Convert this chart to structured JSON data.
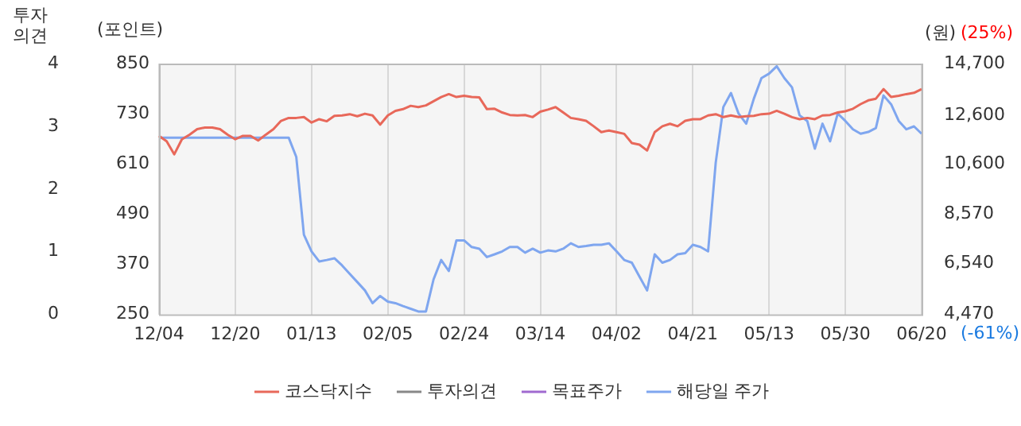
{
  "chart_data": {
    "type": "line",
    "ylabel": "(포인트)",
    "y2label": "(원)",
    "y3label": "투자의견",
    "categories": [
      "12/04",
      null,
      null,
      null,
      null,
      null,
      null,
      null,
      null,
      null,
      "12/20",
      null,
      null,
      null,
      null,
      null,
      null,
      null,
      null,
      null,
      "01/13",
      null,
      null,
      null,
      null,
      null,
      null,
      null,
      null,
      null,
      "02/05",
      null,
      null,
      null,
      null,
      null,
      null,
      null,
      null,
      null,
      "02/24",
      null,
      null,
      null,
      null,
      null,
      null,
      null,
      null,
      null,
      "03/14",
      null,
      null,
      null,
      null,
      null,
      null,
      null,
      null,
      null,
      "04/02",
      null,
      null,
      null,
      null,
      null,
      null,
      null,
      null,
      null,
      "04/21",
      null,
      null,
      null,
      null,
      null,
      null,
      null,
      null,
      null,
      "05/13",
      null,
      null,
      null,
      null,
      null,
      null,
      null,
      null,
      null,
      "05/30",
      null,
      null,
      null,
      null,
      null,
      null,
      null,
      null,
      null,
      "06/20"
    ],
    "series": [
      {
        "name": "코스닥지수",
        "color": "#e8685a",
        "values": [
          677,
          664,
          633,
          669,
          680,
          693,
          697,
          697,
          693,
          680,
          669,
          677,
          677,
          666,
          680,
          693,
          713,
          720,
          720,
          722,
          709,
          717,
          712,
          725,
          726,
          729,
          724,
          730,
          726,
          704,
          726,
          737,
          741,
          749,
          746,
          750,
          760,
          770,
          777,
          770,
          773,
          770,
          769,
          741,
          742,
          733,
          727,
          726,
          727,
          722,
          735,
          740,
          746,
          733,
          720,
          717,
          713,
          700,
          686,
          690,
          686,
          682,
          660,
          656,
          642,
          686,
          700,
          706,
          700,
          713,
          717,
          717,
          726,
          729,
          722,
          726,
          722,
          724,
          725,
          729,
          730,
          737,
          730,
          722,
          717,
          720,
          717,
          726,
          727,
          733,
          736,
          742,
          753,
          762,
          766,
          789,
          770,
          773,
          777,
          780,
          789
        ]
      },
      {
        "name": "투자의견",
        "color": "#888888",
        "axis": "y3",
        "values": [
          null,
          null,
          null,
          null,
          null,
          null,
          null,
          null,
          null,
          null,
          null,
          null,
          null,
          null,
          null,
          null,
          null,
          null,
          null,
          null,
          null,
          null,
          null,
          null,
          null,
          null,
          null,
          null,
          null,
          null,
          null,
          null,
          null,
          null,
          null,
          null,
          null,
          null,
          null,
          null,
          null,
          null,
          null,
          null,
          null,
          null,
          null,
          null,
          null,
          null,
          null,
          null,
          null,
          null,
          null,
          null,
          null,
          null,
          null,
          null,
          null,
          null,
          null,
          null,
          null,
          null,
          null,
          null,
          null,
          null,
          null,
          null,
          null,
          null,
          null,
          null,
          null,
          null,
          null,
          null,
          null,
          null,
          null,
          null,
          null,
          null,
          null,
          null,
          null,
          null,
          null,
          null,
          null,
          null,
          null,
          null,
          null,
          null,
          null,
          null,
          null
        ]
      },
      {
        "name": "목표주가",
        "color": "#a06ad0",
        "axis": "y2",
        "values": [
          null,
          null,
          null,
          null,
          null,
          null,
          null,
          null,
          null,
          null,
          null,
          null,
          null,
          null,
          null,
          null,
          null,
          null,
          null,
          null,
          null,
          null,
          null,
          null,
          null,
          null,
          null,
          null,
          null,
          null,
          null,
          null,
          null,
          null,
          null,
          null,
          null,
          null,
          null,
          null,
          null,
          null,
          null,
          null,
          null,
          null,
          null,
          null,
          null,
          null,
          null,
          null,
          null,
          null,
          null,
          null,
          null,
          null,
          null,
          null,
          null,
          null,
          null,
          null,
          null,
          null,
          null,
          null,
          null,
          null,
          null,
          null,
          null,
          null,
          null,
          null,
          null,
          null,
          null,
          null,
          null,
          null,
          null,
          null,
          null,
          null,
          null,
          null,
          null,
          null,
          null,
          null,
          null,
          null,
          null,
          null,
          null,
          null,
          null,
          null,
          null
        ]
      },
      {
        "name": "해당일 주가",
        "color": "#7fa6ef",
        "axis": "y2",
        "values": [
          11680,
          11680,
          11680,
          11680,
          11680,
          11680,
          11680,
          11680,
          11680,
          11680,
          11680,
          11680,
          11680,
          11680,
          11680,
          11680,
          11680,
          11680,
          10890,
          7720,
          7040,
          6630,
          6690,
          6760,
          6470,
          6130,
          5790,
          5450,
          4930,
          5220,
          4990,
          4930,
          4810,
          4700,
          4590,
          4590,
          5900,
          6690,
          6240,
          7490,
          7490,
          7220,
          7150,
          6810,
          6920,
          7040,
          7220,
          7220,
          6990,
          7150,
          6990,
          7080,
          7040,
          7150,
          7370,
          7220,
          7260,
          7310,
          7310,
          7370,
          7040,
          6690,
          6580,
          6010,
          5450,
          6920,
          6580,
          6690,
          6920,
          6970,
          7310,
          7220,
          7040,
          10660,
          12930,
          13500,
          12660,
          12250,
          13270,
          14110,
          14290,
          14590,
          14110,
          13730,
          12590,
          12360,
          11230,
          12250,
          11530,
          12660,
          12360,
          12020,
          11840,
          11910,
          12070,
          13400,
          13040,
          12360,
          12020,
          12140,
          11840
        ]
      }
    ],
    "ylim": [
      250,
      850
    ],
    "yticks": [
      250,
      370,
      490,
      610,
      730,
      850
    ],
    "y2lim": [
      4470,
      14700
    ],
    "y2ticks": [
      {
        "value": 4470,
        "label": "4,470"
      },
      {
        "value": 6540,
        "label": "6,540"
      },
      {
        "value": 8570,
        "label": "8,570"
      },
      {
        "value": 10600,
        "label": "10,600"
      },
      {
        "value": 12600,
        "label": "12,600"
      },
      {
        "value": 14700,
        "label": "14,700"
      }
    ],
    "y3lim": [
      0,
      4
    ],
    "y3ticks": [
      0,
      1,
      2,
      3,
      4
    ],
    "grid": "x",
    "legend": "bottom",
    "marker": "none",
    "line_style": "solid",
    "annotations": [
      "(25%)",
      "(-61%)"
    ]
  }
}
